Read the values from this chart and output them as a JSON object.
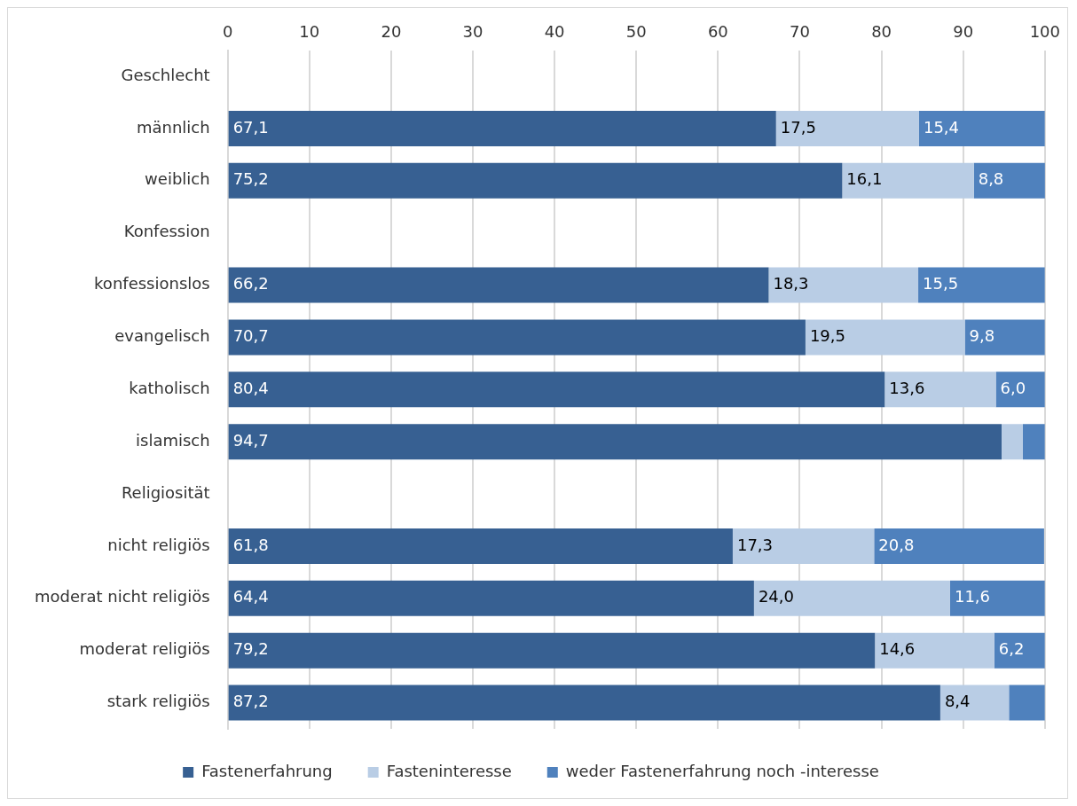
{
  "chart_data": {
    "type": "bar",
    "orientation": "horizontal",
    "stacked": true,
    "categories": [
      "Geschlecht",
      "männlich",
      "weiblich",
      "Konfession",
      "konfessionslos",
      "evangelisch",
      "katholisch",
      "islamisch",
      "Religiosität",
      "nicht religiös",
      "moderat nicht religiös",
      "moderat religiös",
      "stark religiös"
    ],
    "series": [
      {
        "name": "Fastenerfahrung",
        "color": "#376092",
        "values": [
          null,
          67.1,
          75.2,
          null,
          66.2,
          70.7,
          80.4,
          94.7,
          null,
          61.8,
          64.4,
          79.2,
          87.2
        ],
        "value_labels": [
          null,
          "67,1",
          "75,2",
          null,
          "66,2",
          "70,7",
          "80,4",
          "94,7",
          null,
          "61,8",
          "64,4",
          "79,2",
          "87,2"
        ]
      },
      {
        "name": "Fasteninteresse",
        "color": "#b9cde5",
        "values": [
          null,
          17.5,
          16.1,
          null,
          18.3,
          19.5,
          13.6,
          2.6,
          null,
          17.3,
          24.0,
          14.6,
          8.4
        ],
        "value_labels": [
          null,
          "17,5",
          "16,1",
          null,
          "18,3",
          "19,5",
          "13,6",
          null,
          null,
          "17,3",
          "24,0",
          "14,6",
          "8,4"
        ]
      },
      {
        "name": "weder Fastenerfahrung noch -interesse",
        "color": "#4f81bd",
        "values": [
          null,
          15.4,
          8.8,
          null,
          15.5,
          9.8,
          6.0,
          2.7,
          null,
          20.8,
          11.6,
          6.2,
          4.4
        ],
        "value_labels": [
          null,
          "15,4",
          "8,8",
          null,
          "15,5",
          "9,8",
          "6,0",
          null,
          null,
          "20,8",
          "11,6",
          "6,2",
          null
        ]
      }
    ],
    "xlim": [
      0,
      100
    ],
    "xticks": [
      0,
      10,
      20,
      30,
      40,
      50,
      60,
      70,
      80,
      90,
      100
    ],
    "grid": "x",
    "legend": "bottom"
  }
}
